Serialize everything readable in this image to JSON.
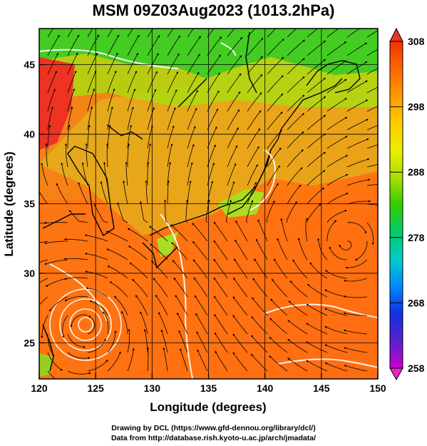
{
  "title": "MSM 09Z03Aug2023 (1013.2hPa)",
  "map": {
    "x_axis_label": "Longitude (degrees)",
    "y_axis_label": "Latitude  (degrees)",
    "lon_range": [
      120,
      150
    ],
    "lat_range": [
      22.4,
      47.6
    ],
    "lon_ticks": [
      "120",
      "125",
      "130",
      "135",
      "140",
      "145",
      "150"
    ],
    "lat_ticks": [
      "25",
      "30",
      "35",
      "40",
      "45"
    ],
    "field": "temperature (K) with streamlines",
    "grid": true
  },
  "colorbar": {
    "labels": [
      "308",
      "298",
      "288",
      "278",
      "268",
      "258"
    ],
    "min": 258,
    "max": 308,
    "colors": [
      "#cc00cc",
      "#5a20d0",
      "#1030e0",
      "#0088ff",
      "#00cccc",
      "#00cc66",
      "#33cc00",
      "#aadd00",
      "#eeee00",
      "#ffcc00",
      "#ff9900",
      "#ff6600",
      "#ee3300"
    ]
  },
  "credits": {
    "line1": "Drawing by DCL (https://www.gfd-dennou.org/library/dcl/)",
    "line2": "Data from http://database.rish.kyoto-u.ac.jp/arch/jmadata/"
  }
}
